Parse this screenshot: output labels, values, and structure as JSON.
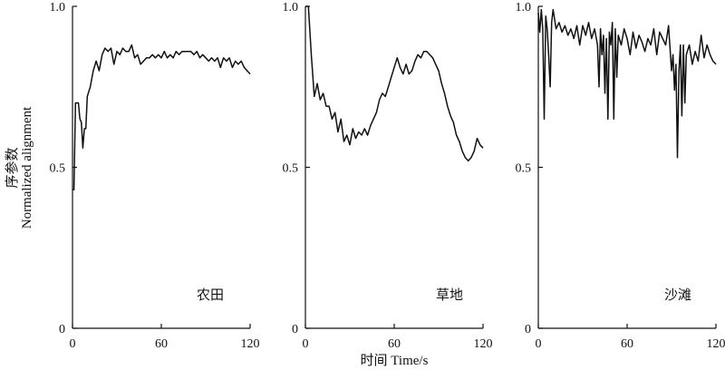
{
  "chart_data": {
    "type": "line",
    "ylabel_cn": "序参数",
    "ylabel_en": "Normalized alignment",
    "xlabel": "时间 Time/s",
    "xlim": [
      0,
      120
    ],
    "ylim": [
      0,
      1
    ],
    "x_ticks": [
      "0",
      "60",
      "120"
    ],
    "y_ticks": [
      "0",
      "0.5",
      "1.0"
    ],
    "panels": [
      {
        "label": "农田",
        "x": [
          0,
          1,
          2,
          3,
          4,
          5,
          6,
          7,
          8,
          9,
          10,
          12,
          14,
          16,
          18,
          20,
          22,
          24,
          26,
          28,
          30,
          32,
          34,
          36,
          38,
          40,
          42,
          44,
          46,
          48,
          50,
          52,
          54,
          56,
          58,
          60,
          62,
          64,
          66,
          68,
          70,
          72,
          74,
          76,
          78,
          80,
          82,
          84,
          86,
          88,
          90,
          92,
          94,
          96,
          98,
          100,
          102,
          104,
          106,
          108,
          110,
          112,
          114,
          116,
          118,
          120
        ],
        "y": [
          0.43,
          0.43,
          0.7,
          0.7,
          0.7,
          0.65,
          0.64,
          0.56,
          0.62,
          0.62,
          0.72,
          0.75,
          0.8,
          0.83,
          0.8,
          0.85,
          0.87,
          0.86,
          0.87,
          0.82,
          0.86,
          0.85,
          0.87,
          0.86,
          0.86,
          0.88,
          0.84,
          0.85,
          0.82,
          0.83,
          0.84,
          0.84,
          0.85,
          0.84,
          0.85,
          0.84,
          0.86,
          0.84,
          0.85,
          0.84,
          0.86,
          0.85,
          0.86,
          0.86,
          0.86,
          0.86,
          0.85,
          0.86,
          0.84,
          0.85,
          0.84,
          0.83,
          0.84,
          0.83,
          0.84,
          0.81,
          0.84,
          0.83,
          0.84,
          0.81,
          0.83,
          0.82,
          0.83,
          0.81,
          0.8,
          0.79
        ]
      },
      {
        "label": "草地",
        "x": [
          0,
          2,
          4,
          6,
          8,
          10,
          12,
          14,
          16,
          18,
          20,
          22,
          24,
          26,
          28,
          30,
          32,
          34,
          36,
          38,
          40,
          42,
          44,
          46,
          48,
          50,
          52,
          54,
          56,
          58,
          60,
          62,
          64,
          66,
          68,
          70,
          72,
          74,
          76,
          78,
          80,
          82,
          84,
          86,
          88,
          90,
          92,
          94,
          96,
          98,
          100,
          102,
          104,
          106,
          108,
          110,
          112,
          114,
          116,
          118,
          120
        ],
        "y": [
          1.0,
          1.0,
          0.85,
          0.72,
          0.76,
          0.71,
          0.73,
          0.69,
          0.69,
          0.65,
          0.67,
          0.61,
          0.65,
          0.58,
          0.6,
          0.57,
          0.62,
          0.59,
          0.61,
          0.6,
          0.62,
          0.6,
          0.63,
          0.65,
          0.67,
          0.71,
          0.73,
          0.72,
          0.75,
          0.78,
          0.81,
          0.84,
          0.81,
          0.79,
          0.82,
          0.79,
          0.8,
          0.83,
          0.85,
          0.84,
          0.86,
          0.86,
          0.85,
          0.84,
          0.82,
          0.8,
          0.76,
          0.73,
          0.69,
          0.66,
          0.64,
          0.6,
          0.58,
          0.55,
          0.53,
          0.52,
          0.53,
          0.55,
          0.59,
          0.57,
          0.56
        ]
      },
      {
        "label": "沙滩",
        "x": [
          0,
          1,
          2,
          3,
          4,
          5,
          6,
          7,
          8,
          9,
          10,
          12,
          14,
          16,
          18,
          20,
          22,
          24,
          26,
          28,
          30,
          32,
          34,
          36,
          38,
          40,
          41,
          42,
          43,
          44,
          45,
          46,
          47,
          48,
          49,
          50,
          51,
          52,
          53,
          54,
          56,
          58,
          60,
          62,
          64,
          66,
          68,
          70,
          72,
          74,
          76,
          78,
          80,
          82,
          84,
          86,
          88,
          90,
          91,
          92,
          93,
          94,
          95,
          96,
          97,
          98,
          99,
          100,
          102,
          104,
          106,
          108,
          110,
          112,
          114,
          116,
          118,
          120
        ],
        "y": [
          0.98,
          0.92,
          0.99,
          0.93,
          0.65,
          0.97,
          0.93,
          0.85,
          0.75,
          0.95,
          0.99,
          0.93,
          0.95,
          0.92,
          0.94,
          0.91,
          0.93,
          0.9,
          0.94,
          0.88,
          0.94,
          0.91,
          0.95,
          0.9,
          0.93,
          0.88,
          0.75,
          0.93,
          0.85,
          0.91,
          0.73,
          0.9,
          0.65,
          0.92,
          0.88,
          0.95,
          0.65,
          0.93,
          0.78,
          0.91,
          0.88,
          0.93,
          0.9,
          0.85,
          0.92,
          0.87,
          0.91,
          0.89,
          0.86,
          0.9,
          0.88,
          0.93,
          0.85,
          0.92,
          0.9,
          0.88,
          0.94,
          0.8,
          0.85,
          0.74,
          0.82,
          0.53,
          0.8,
          0.88,
          0.66,
          0.88,
          0.7,
          0.85,
          0.88,
          0.82,
          0.86,
          0.83,
          0.91,
          0.84,
          0.88,
          0.85,
          0.83,
          0.82
        ]
      }
    ]
  }
}
